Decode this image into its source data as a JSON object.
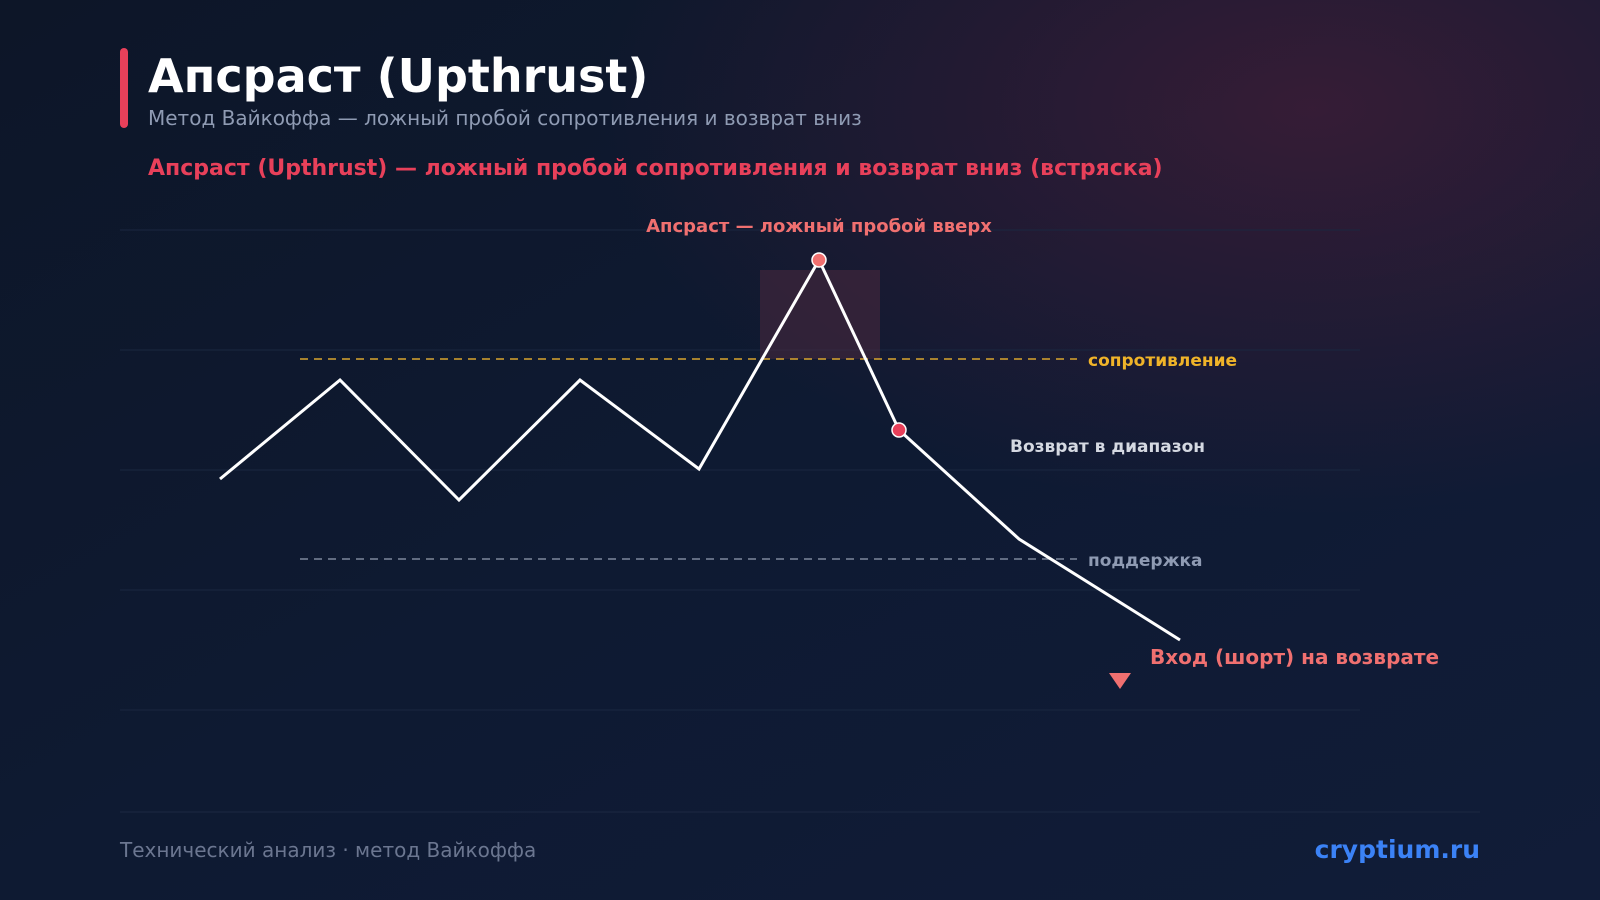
{
  "header": {
    "title": "Апсраст (Upthrust)",
    "subtitle": "Метод Вайкоффа — ложный пробой сопротивления и возврат вниз"
  },
  "headline": "Апсраст (Upthrust) — ложный пробой сопротивления и возврат вниз (встряска)",
  "annotations": {
    "upthrust": "Апсраст — ложный пробой вверх",
    "resistance": "сопротивление",
    "return": "Возврат в диапазон",
    "support": "поддержка",
    "entry": "Вход (шорт) на возврате"
  },
  "footer": {
    "caption": "Технический анализ · метод Вайкоффа",
    "brand": "cryptium.ru"
  }
}
